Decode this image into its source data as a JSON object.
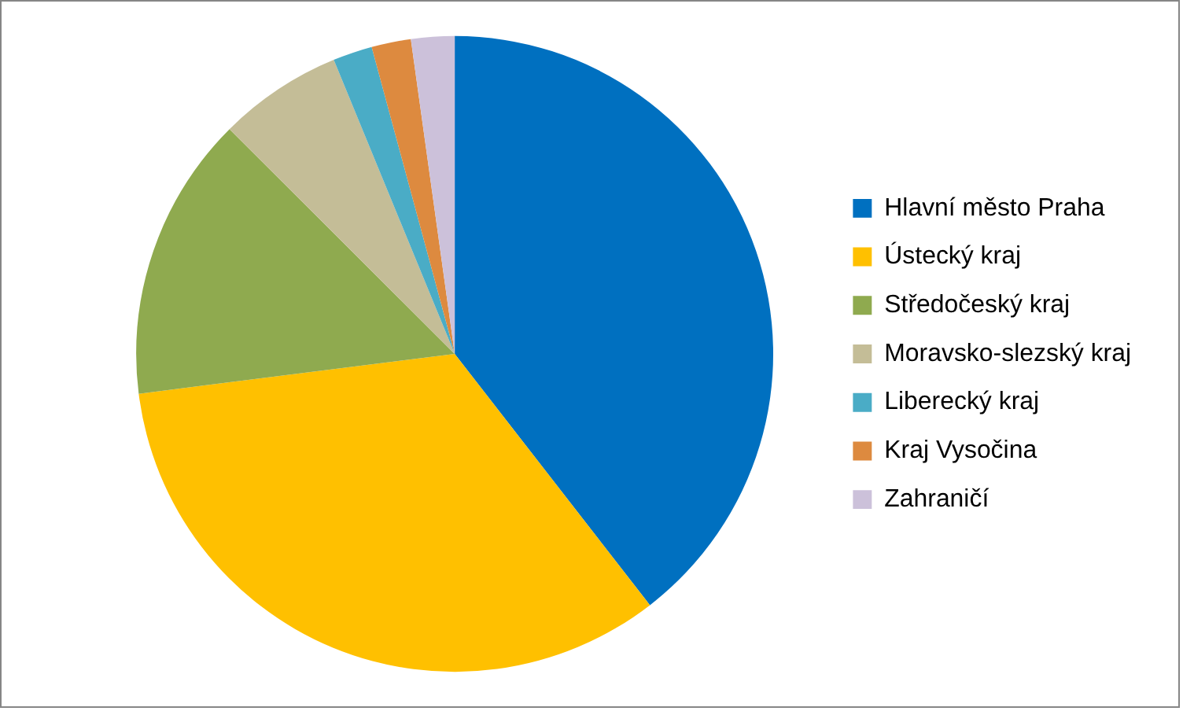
{
  "chart_data": {
    "type": "pie",
    "categories": [
      "Hlavní město Praha",
      "Ústecký kraj",
      "Středočeský kraj",
      "Moravsko-slezský kraj",
      "Liberecký kraj",
      "Kraj Vysočina",
      "Zahraničí"
    ],
    "values": [
      39.5,
      33.5,
      14.5,
      6.3,
      2.0,
      2.0,
      2.2
    ],
    "colors": [
      "#0070c0",
      "#ffc000",
      "#8faa4f",
      "#c4bd97",
      "#4aacc6",
      "#dd8a3f",
      "#ccc1da"
    ],
    "legend": "right"
  }
}
